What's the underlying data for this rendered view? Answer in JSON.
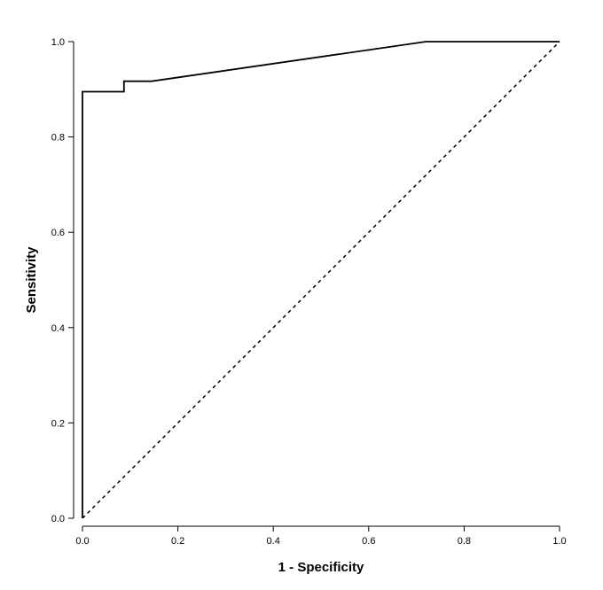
{
  "chart_data": {
    "type": "line",
    "xlabel": "1 - Specificity",
    "ylabel": "Sensitivity",
    "xlim": [
      0.0,
      1.0
    ],
    "ylim": [
      0.0,
      1.0
    ],
    "xticks": [
      "0.0",
      "0.2",
      "0.4",
      "0.6",
      "0.8",
      "1.0"
    ],
    "yticks": [
      "0.0",
      "0.2",
      "0.4",
      "0.6",
      "0.8",
      "1.0"
    ],
    "grid": false,
    "series": [
      {
        "style": "solid",
        "x": [
          0.0,
          0.0,
          0.087,
          0.087,
          0.145,
          0.72,
          1.0
        ],
        "y": [
          0.0,
          0.895,
          0.895,
          0.917,
          0.917,
          1.0,
          1.0
        ]
      },
      {
        "style": "dashed",
        "x": [
          0.0,
          1.0
        ],
        "y": [
          0.0,
          1.0
        ]
      }
    ]
  }
}
